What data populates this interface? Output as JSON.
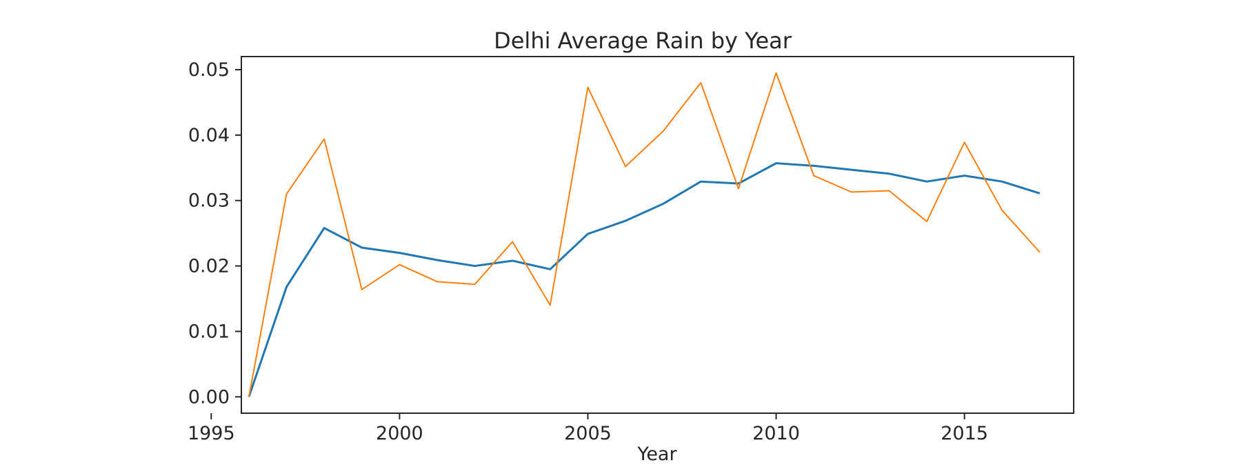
{
  "chart_data": {
    "type": "line",
    "title": "Delhi Average Rain by Year",
    "xlabel": "Year",
    "ylabel": "",
    "xlim": [
      1995.8,
      2017.9
    ],
    "ylim": [
      -0.0025,
      0.052
    ],
    "x_ticks": [
      1995,
      2000,
      2005,
      2010,
      2015
    ],
    "x_tick_labels": [
      "1995",
      "2000",
      "2005",
      "2010",
      "2015"
    ],
    "y_ticks": [
      0.0,
      0.01,
      0.02,
      0.03,
      0.04,
      0.05
    ],
    "y_tick_labels": [
      "0.00",
      "0.01",
      "0.02",
      "0.03",
      "0.04",
      "0.05"
    ],
    "grid": false,
    "x": [
      1996,
      1997,
      1998,
      1999,
      2000,
      2001,
      2002,
      2003,
      2004,
      2005,
      2006,
      2007,
      2008,
      2009,
      2010,
      2011,
      2012,
      2013,
      2014,
      2015,
      2016,
      2017
    ],
    "series": [
      {
        "color": "#1f77b4",
        "values": [
          0.0,
          0.0168,
          0.0258,
          0.0228,
          0.022,
          0.0209,
          0.02,
          0.0208,
          0.0195,
          0.0249,
          0.0269,
          0.0295,
          0.0329,
          0.0326,
          0.0357,
          0.0353,
          0.0347,
          0.0341,
          0.0329,
          0.0338,
          0.0329,
          0.0311
        ]
      },
      {
        "color": "#ff7f0e",
        "values": [
          0.0,
          0.031,
          0.0394,
          0.0164,
          0.0202,
          0.0176,
          0.0172,
          0.0237,
          0.014,
          0.0473,
          0.0352,
          0.0406,
          0.048,
          0.0318,
          0.0495,
          0.0338,
          0.0313,
          0.0315,
          0.0268,
          0.0389,
          0.0285,
          0.0221
        ]
      }
    ]
  }
}
